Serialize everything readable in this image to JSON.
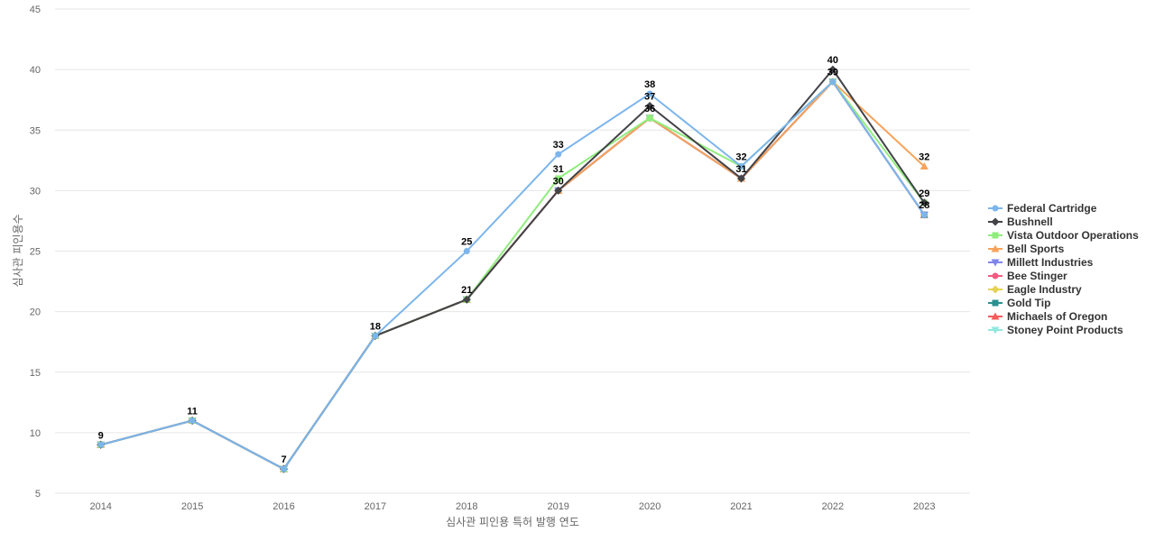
{
  "chart_data": {
    "type": "line",
    "xlabel": "심사관 피인용 특허 발행 연도",
    "ylabel": "심사관 피인용수",
    "categories": [
      "2014",
      "2015",
      "2016",
      "2017",
      "2018",
      "2019",
      "2020",
      "2021",
      "2022",
      "2023"
    ],
    "ylim": [
      5,
      45
    ],
    "yticks": [
      5,
      10,
      15,
      20,
      25,
      30,
      35,
      40,
      45
    ],
    "grid": true,
    "legend_position": "right",
    "series": [
      {
        "name": "Federal Cartridge",
        "color": "#7cb5ec",
        "marker": "circle",
        "values": [
          9,
          11,
          7,
          18,
          25,
          33,
          38,
          32,
          39,
          28
        ]
      },
      {
        "name": "Bushnell",
        "color": "#434348",
        "marker": "diamond",
        "values": [
          9,
          11,
          7,
          18,
          21,
          30,
          37,
          31,
          40,
          29
        ]
      },
      {
        "name": "Vista Outdoor Operations",
        "color": "#90ed7d",
        "marker": "square",
        "values": [
          9,
          11,
          7,
          18,
          21,
          31,
          36,
          32,
          39,
          29
        ]
      },
      {
        "name": "Bell Sports",
        "color": "#f7a35c",
        "marker": "triangle",
        "values": [
          9,
          11,
          7,
          18,
          21,
          30,
          36,
          31,
          39,
          32
        ]
      },
      {
        "name": "Millett Industries",
        "color": "#8085e9",
        "marker": "triangle-down",
        "values": [
          9,
          11,
          7,
          18,
          21,
          30,
          36,
          31,
          39,
          28
        ]
      },
      {
        "name": "Bee Stinger",
        "color": "#f15c80",
        "marker": "circle",
        "values": [
          9,
          11,
          7,
          18,
          21,
          30,
          36,
          31,
          39,
          28
        ]
      },
      {
        "name": "Eagle Industry",
        "color": "#e4d354",
        "marker": "diamond",
        "values": [
          9,
          11,
          7,
          18,
          21,
          30,
          36,
          31,
          39,
          28
        ]
      },
      {
        "name": "Gold Tip",
        "color": "#2b908f",
        "marker": "square",
        "values": [
          9,
          11,
          7,
          18,
          21,
          30,
          36,
          31,
          39,
          28
        ]
      },
      {
        "name": "Michaels of Oregon",
        "color": "#f45b5b",
        "marker": "triangle",
        "values": [
          9,
          11,
          7,
          18,
          21,
          30,
          36,
          31,
          39,
          28
        ]
      },
      {
        "name": "Stoney Point Products",
        "color": "#91e8e1",
        "marker": "triangle-down",
        "values": [
          9,
          11,
          7,
          18,
          21,
          30,
          36,
          31,
          39,
          28
        ]
      }
    ],
    "data_labels": [
      {
        "x": "2014",
        "value": 9
      },
      {
        "x": "2015",
        "value": 11
      },
      {
        "x": "2016",
        "value": 7
      },
      {
        "x": "2017",
        "value": 18
      },
      {
        "x": "2018",
        "value": 25
      },
      {
        "x": "2018",
        "value": 21
      },
      {
        "x": "2019",
        "value": 33
      },
      {
        "x": "2019",
        "value": 31
      },
      {
        "x": "2019",
        "value": 30
      },
      {
        "x": "2020",
        "value": 38
      },
      {
        "x": "2020",
        "value": 37
      },
      {
        "x": "2020",
        "value": 36
      },
      {
        "x": "2021",
        "value": 32
      },
      {
        "x": "2021",
        "value": 31
      },
      {
        "x": "2022",
        "value": 40
      },
      {
        "x": "2022",
        "value": 39
      },
      {
        "x": "2023",
        "value": 32
      },
      {
        "x": "2023",
        "value": 29
      },
      {
        "x": "2023",
        "value": 28
      }
    ]
  }
}
